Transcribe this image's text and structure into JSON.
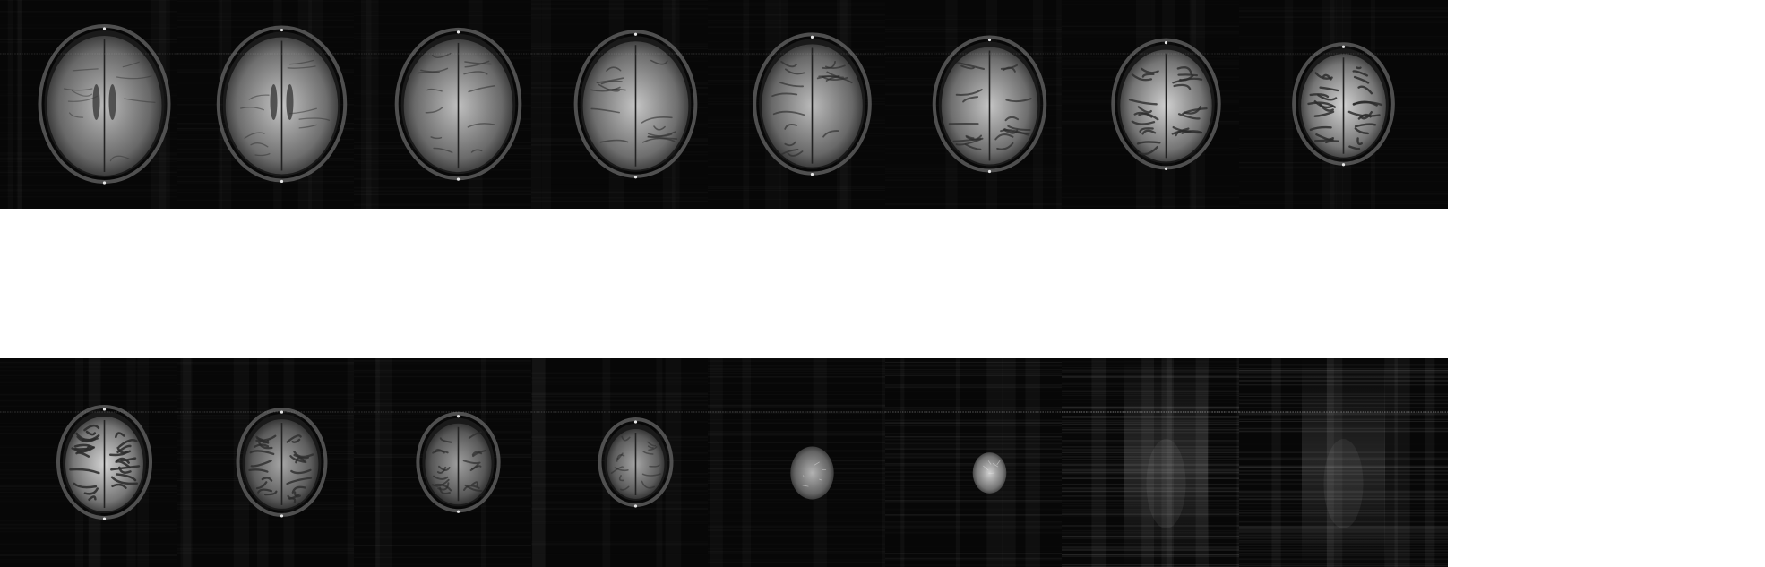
{
  "figure": {
    "rows": [
      {
        "name": "top-row",
        "slices": [
          {
            "kind": "brain",
            "size": 1.0,
            "brightness": 0.55,
            "gyri": 0.15,
            "ventricles": true,
            "noise": 0.08,
            "line": 0.25
          },
          {
            "kind": "brain",
            "size": 0.98,
            "brightness": 0.62,
            "gyri": 0.2,
            "ventricles": true,
            "noise": 0.08,
            "line": 0.25
          },
          {
            "kind": "brain",
            "size": 0.95,
            "brightness": 0.58,
            "gyri": 0.3,
            "ventricles": false,
            "noise": 0.08,
            "line": 0.25
          },
          {
            "kind": "brain",
            "size": 0.92,
            "brightness": 0.62,
            "gyri": 0.4,
            "ventricles": false,
            "noise": 0.08,
            "line": 0.25
          },
          {
            "kind": "brain",
            "size": 0.88,
            "brightness": 0.55,
            "gyri": 0.5,
            "ventricles": false,
            "noise": 0.08,
            "line": 0.25
          },
          {
            "kind": "brain",
            "size": 0.84,
            "brightness": 0.62,
            "gyri": 0.65,
            "ventricles": false,
            "noise": 0.08,
            "line": 0.25
          },
          {
            "kind": "brain",
            "size": 0.8,
            "brightness": 0.7,
            "gyri": 0.8,
            "ventricles": false,
            "noise": 0.08,
            "line": 0.25
          },
          {
            "kind": "brain",
            "size": 0.74,
            "brightness": 0.72,
            "gyri": 0.9,
            "ventricles": false,
            "noise": 0.08,
            "line": 0.25
          }
        ]
      },
      {
        "name": "bottom-row",
        "slices": [
          {
            "kind": "brain",
            "size": 0.68,
            "brightness": 0.72,
            "gyri": 0.95,
            "ventricles": false,
            "noise": 0.1,
            "line": 0.35
          },
          {
            "kind": "brain",
            "size": 0.64,
            "brightness": 0.4,
            "gyri": 0.8,
            "ventricles": false,
            "noise": 0.12,
            "line": 0.35
          },
          {
            "kind": "brain",
            "size": 0.58,
            "brightness": 0.35,
            "gyri": 0.6,
            "ventricles": false,
            "noise": 0.12,
            "line": 0.35
          },
          {
            "kind": "brain",
            "size": 0.5,
            "brightness": 0.4,
            "gyri": 0.35,
            "ventricles": false,
            "noise": 0.14,
            "line": 0.4
          },
          {
            "kind": "blob",
            "size": 0.36,
            "brightness": 0.62,
            "gyri": 0.1,
            "ventricles": false,
            "noise": 0.18,
            "line": 0.45
          },
          {
            "kind": "blob",
            "size": 0.28,
            "brightness": 0.85,
            "gyri": 0.0,
            "ventricles": false,
            "noise": 0.3,
            "line": 0.6
          },
          {
            "kind": "noise",
            "size": 0.0,
            "brightness": 0.2,
            "gyri": 0.0,
            "ventricles": false,
            "noise": 0.55,
            "line": 0.8
          },
          {
            "kind": "noise",
            "size": 0.0,
            "brightness": 0.15,
            "gyri": 0.0,
            "ventricles": false,
            "noise": 0.5,
            "line": 0.75
          }
        ]
      }
    ],
    "colors": {
      "background": "#ffffff",
      "tile": "#070707",
      "tissue": "#8a8a8a",
      "bright": "#d8d8d8"
    }
  }
}
